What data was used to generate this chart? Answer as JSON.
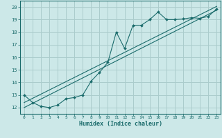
{
  "xlabel": "Humidex (Indice chaleur)",
  "bg_color": "#cce8e8",
  "grid_color": "#aacccc",
  "line_color": "#1a6b6b",
  "xlim": [
    -0.5,
    23.5
  ],
  "ylim": [
    11.5,
    20.5
  ],
  "xticks": [
    0,
    1,
    2,
    3,
    4,
    5,
    6,
    7,
    8,
    9,
    10,
    11,
    12,
    13,
    14,
    15,
    16,
    17,
    18,
    19,
    20,
    21,
    22,
    23
  ],
  "yticks": [
    12,
    13,
    14,
    15,
    16,
    17,
    18,
    19,
    20
  ],
  "curve_x": [
    0,
    1,
    2,
    3,
    4,
    5,
    6,
    7,
    8,
    9,
    10,
    11,
    12,
    13,
    14,
    15,
    16,
    17,
    18,
    19,
    20,
    21,
    22,
    23
  ],
  "curve_y": [
    13.0,
    12.4,
    12.1,
    12.0,
    12.2,
    12.7,
    12.8,
    13.0,
    14.1,
    14.8,
    15.6,
    18.0,
    16.7,
    18.55,
    18.55,
    19.0,
    19.6,
    19.0,
    19.0,
    19.05,
    19.15,
    19.1,
    19.25,
    19.85
  ],
  "line1_x": [
    0,
    23
  ],
  "line1_y": [
    12.0,
    19.75
  ],
  "line2_x": [
    0,
    23
  ],
  "line2_y": [
    12.4,
    20.05
  ]
}
